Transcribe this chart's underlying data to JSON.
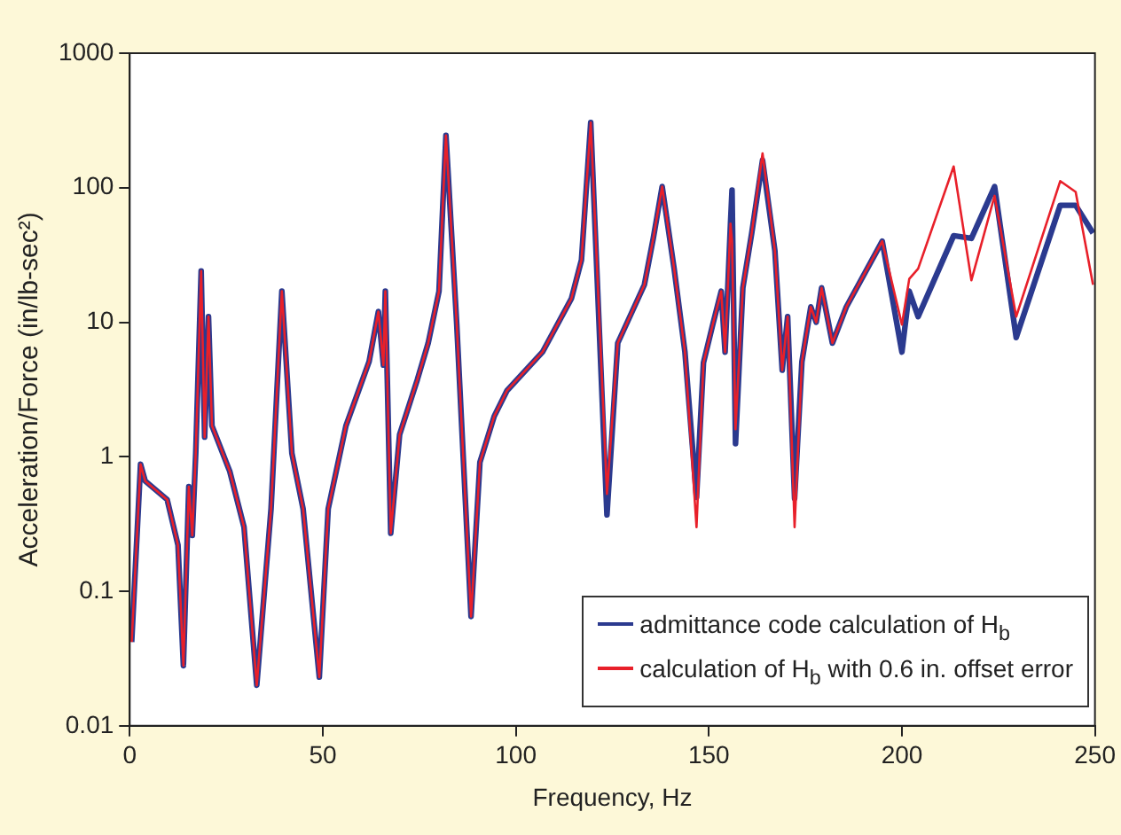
{
  "chart_data": {
    "type": "line",
    "xlabel": "Frequency, Hz",
    "ylabel": "Acceleration/Force (in/lb-sec²)",
    "x": [
      0.5,
      2.8,
      4,
      9.7,
      12.5,
      13.9,
      15.3,
      16.2,
      17.1,
      18.5,
      19.4,
      20.4,
      21.3,
      25.9,
      29.6,
      32.9,
      36.6,
      39.4,
      42,
      44.9,
      49.1,
      51.4,
      56,
      62,
      64.4,
      65.7,
      66.2,
      67.6,
      69.9,
      74.5,
      77.3,
      80.1,
      81.9,
      84.7,
      88.4,
      90.7,
      94.4,
      97.7,
      106.9,
      114.4,
      117,
      119.4,
      123.6,
      126.4,
      133.3,
      135.6,
      137.9,
      141,
      143.8,
      146.8,
      148.6,
      151,
      153.2,
      154.2,
      155.6,
      156,
      156.9,
      158.8,
      161.1,
      163.9,
      167.1,
      169,
      170.4,
      172.2,
      174.1,
      176.4,
      177.8,
      179.2,
      182,
      185.6,
      194.9,
      200,
      201.9,
      204.2,
      213.4,
      218,
      224,
      229.6,
      241,
      245,
      249.5
    ],
    "series": [
      {
        "name": "admittance code calculation of H$_{b}$",
        "color": "#2b3a8f",
        "values": [
          0.042,
          0.88,
          0.66,
          0.48,
          0.22,
          0.028,
          0.6,
          0.26,
          1.07,
          24,
          1.4,
          11,
          1.7,
          0.78,
          0.3,
          0.02,
          0.41,
          17,
          1.06,
          0.41,
          0.023,
          0.41,
          1.7,
          5.1,
          12,
          4.8,
          17,
          0.27,
          1.46,
          3.75,
          7,
          17,
          245,
          9.6,
          0.065,
          0.91,
          2,
          3.1,
          6,
          15,
          29,
          305,
          0.37,
          7,
          19,
          42,
          102,
          25,
          6,
          0.5,
          5,
          9.6,
          17,
          6,
          54,
          96,
          1.25,
          18,
          46,
          160,
          34,
          4.4,
          11,
          0.49,
          5.1,
          13,
          10,
          18,
          7,
          13,
          40,
          6,
          17,
          11,
          44,
          42,
          102,
          7.7,
          74,
          74,
          46
        ]
      },
      {
        "name": "calculation of H$_{b}$ with 0.6 in. offset error",
        "color": "#e8202a",
        "values": [
          0.042,
          0.88,
          0.66,
          0.48,
          0.22,
          0.028,
          0.6,
          0.26,
          1.07,
          24,
          1.4,
          11,
          1.7,
          0.78,
          0.3,
          0.02,
          0.41,
          17,
          1.06,
          0.41,
          0.023,
          0.41,
          1.7,
          5.1,
          12,
          4.8,
          17,
          0.27,
          1.46,
          3.75,
          7,
          17,
          245,
          9.6,
          0.065,
          0.91,
          2,
          3.1,
          6,
          15,
          29,
          305,
          0.53,
          7,
          19,
          42,
          102,
          25,
          6,
          0.3,
          5,
          9.6,
          17,
          6,
          54,
          40,
          1.6,
          18,
          46,
          180,
          34,
          4.4,
          11,
          0.3,
          5.1,
          13,
          10,
          18,
          7,
          13,
          40,
          9.6,
          21,
          25,
          144,
          20.5,
          87,
          11,
          112,
          93,
          19
        ]
      }
    ],
    "xlim": [
      0,
      250
    ],
    "xticks": [
      0,
      50,
      100,
      150,
      200,
      250
    ],
    "ylim": [
      0.01,
      1000
    ],
    "yticks": [
      0.01,
      0.1,
      1,
      10,
      100,
      1000
    ],
    "log": "y",
    "grid": false,
    "legend": "bottom right"
  }
}
